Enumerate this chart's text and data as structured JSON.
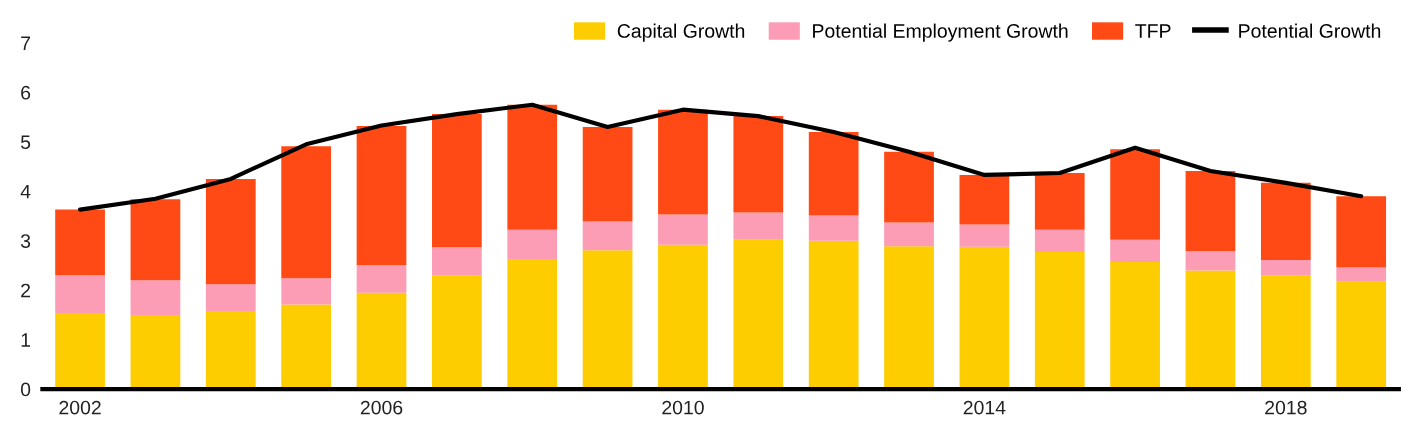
{
  "chart_data": {
    "type": "bar",
    "stacked": true,
    "categories": [
      "2002",
      null,
      null,
      null,
      "2006",
      null,
      null,
      null,
      "2010",
      null,
      null,
      null,
      "2014",
      null,
      null,
      null,
      "2018",
      null
    ],
    "series": [
      {
        "name": "Capital Growth",
        "color": "#fdcd00",
        "values": [
          1.54,
          1.5,
          1.58,
          1.71,
          1.95,
          2.3,
          2.63,
          2.81,
          2.92,
          3.02,
          3.0,
          2.89,
          2.88,
          2.77,
          2.57,
          2.4,
          2.3,
          2.18
        ]
      },
      {
        "name": "Potential Employment Growth",
        "color": "#fc9db5",
        "values": [
          0.76,
          0.7,
          0.54,
          0.53,
          0.56,
          0.57,
          0.59,
          0.58,
          0.61,
          0.55,
          0.51,
          0.48,
          0.45,
          0.45,
          0.45,
          0.39,
          0.31,
          0.28
        ]
      },
      {
        "name": "TFP",
        "color": "#ff4a15",
        "values": [
          1.33,
          1.64,
          2.13,
          2.67,
          2.81,
          2.69,
          2.53,
          1.91,
          2.12,
          1.95,
          1.69,
          1.43,
          1.0,
          1.15,
          1.83,
          1.62,
          1.56,
          1.44
        ]
      },
      {
        "name": "Potential Growth",
        "type": "line",
        "color": "#000000",
        "values": [
          3.63,
          3.85,
          4.25,
          4.95,
          5.33,
          5.56,
          5.75,
          5.3,
          5.65,
          5.52,
          5.2,
          4.8,
          4.33,
          4.37,
          4.88,
          4.41,
          4.17,
          3.9
        ]
      }
    ],
    "ylim": [
      0,
      7
    ],
    "yticks": [
      0,
      1,
      2,
      3,
      4,
      5,
      6,
      7
    ],
    "grid": false,
    "legend": "top right",
    "marker": "none",
    "line_style": "solid"
  }
}
